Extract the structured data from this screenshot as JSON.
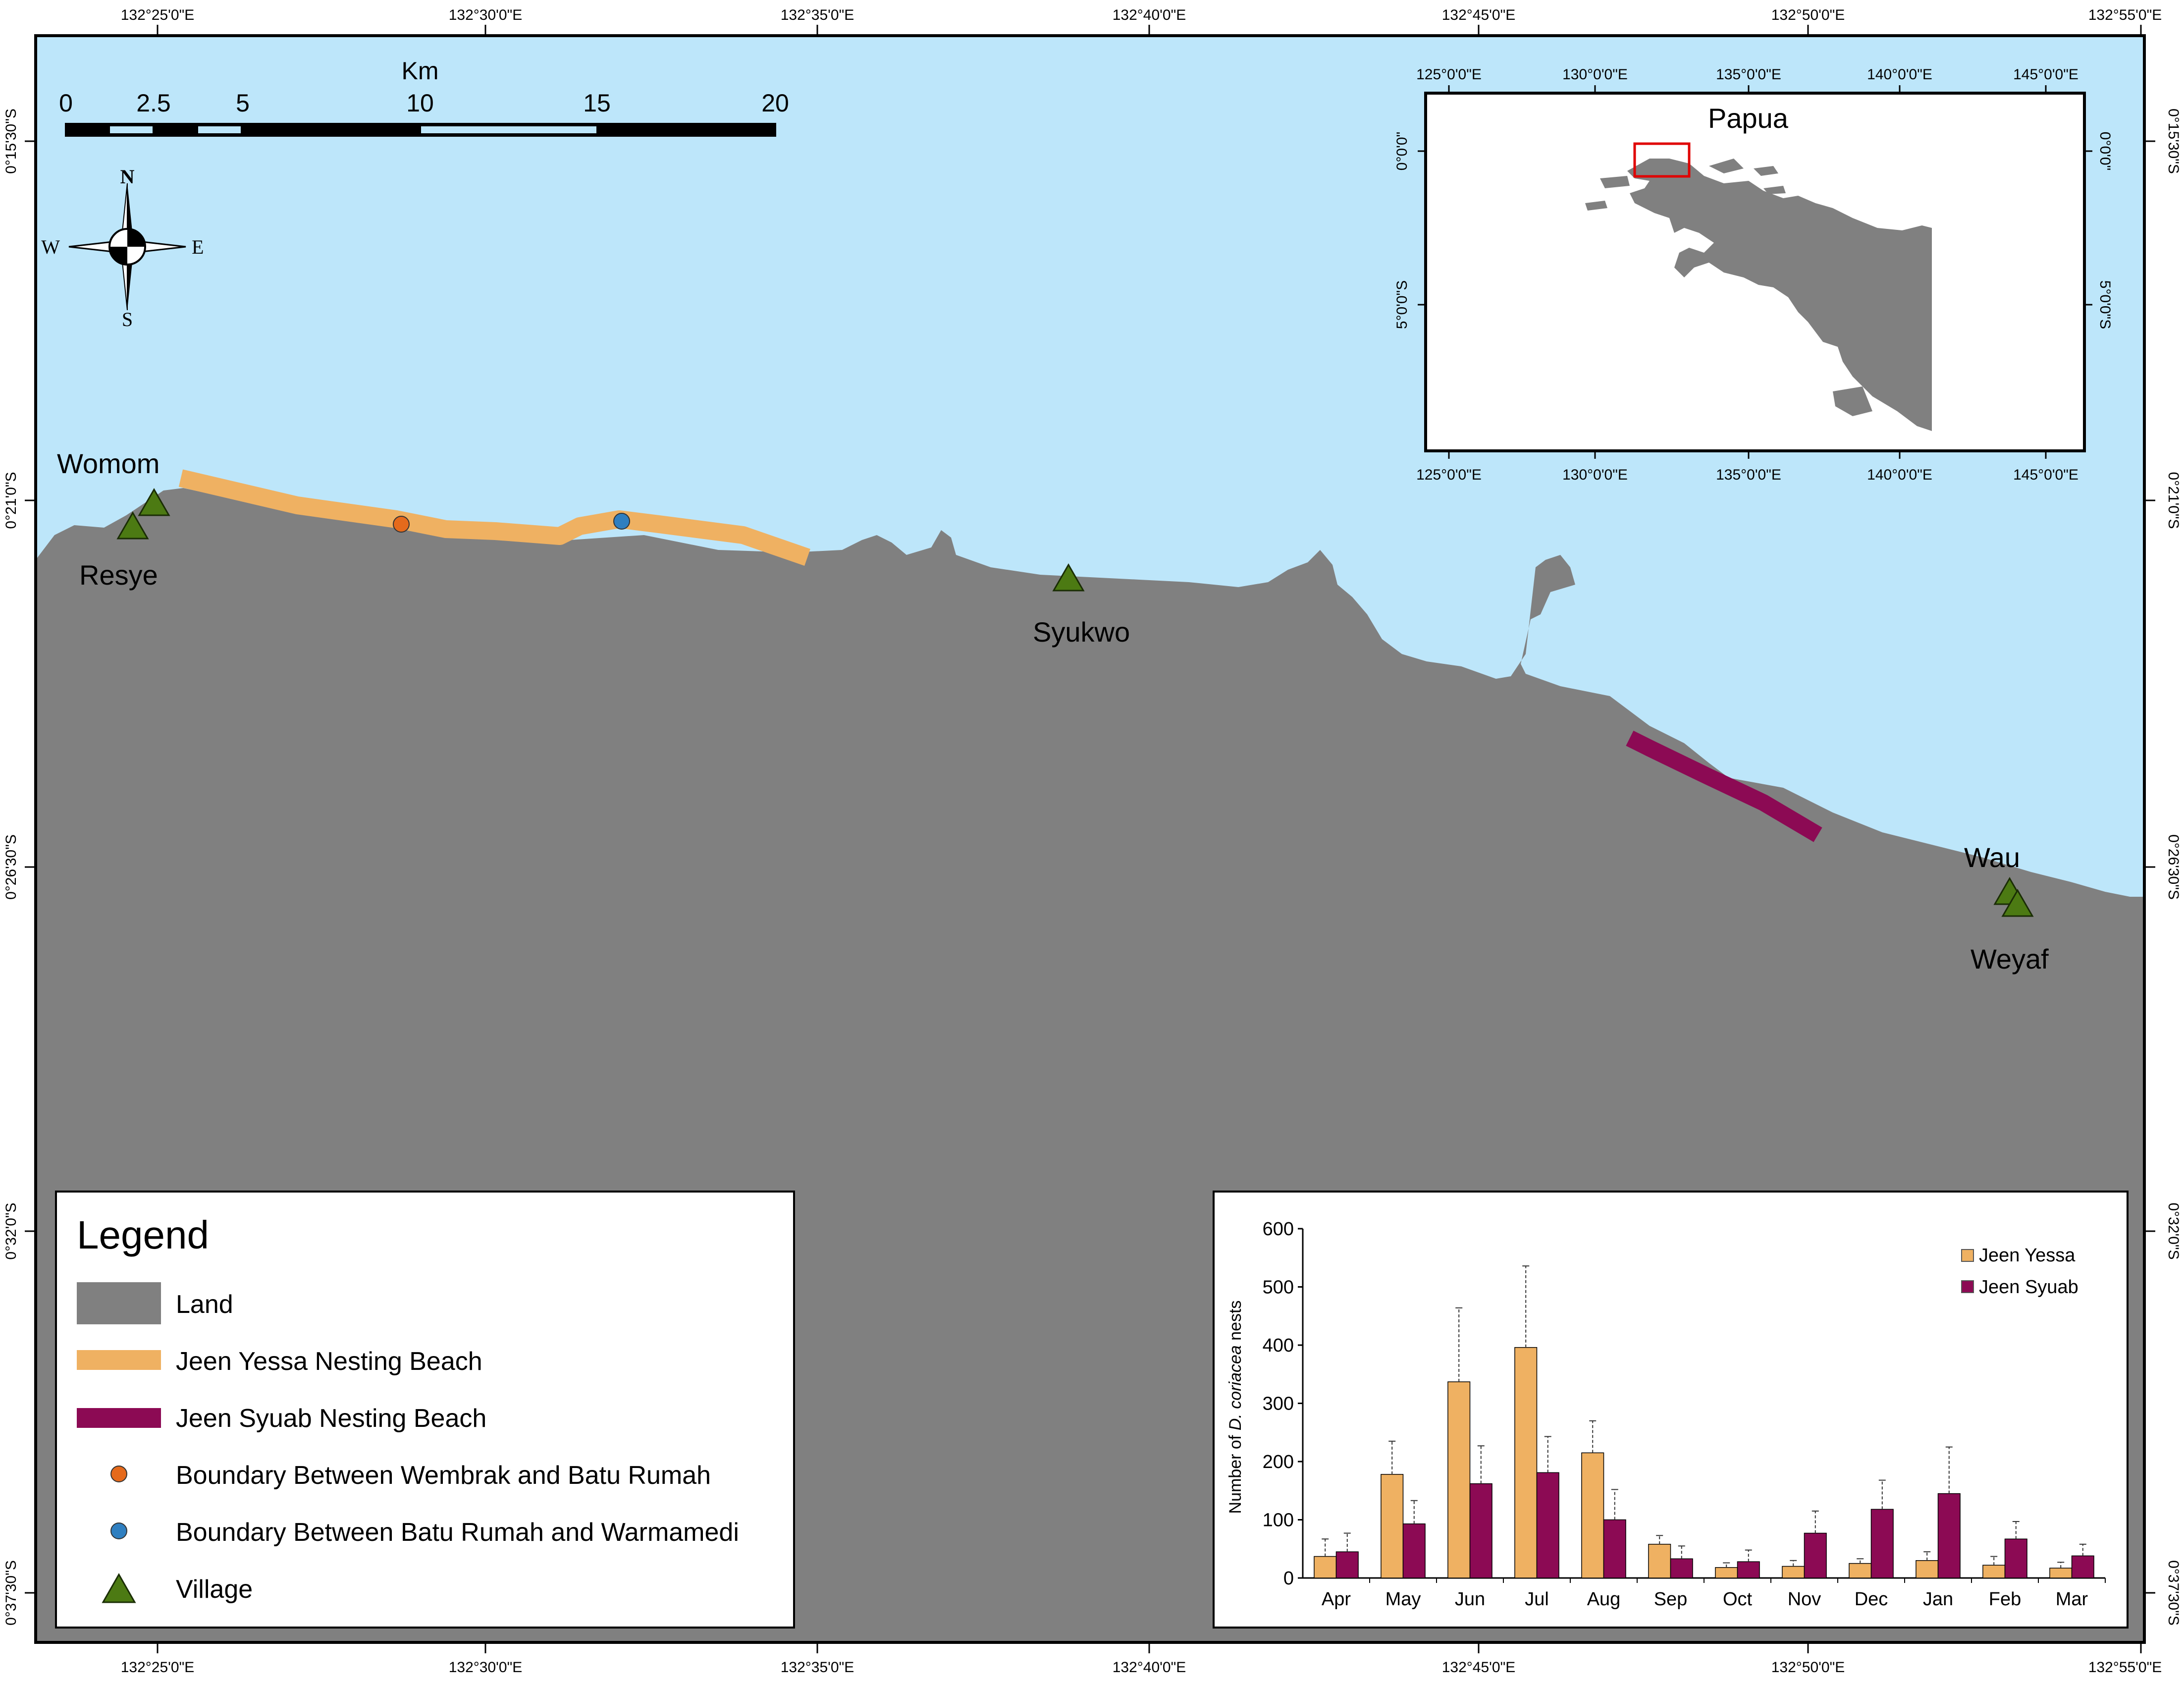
{
  "map": {
    "top_ticks": [
      "132°25'0\"E",
      "132°30'0\"E",
      "132°35'0\"E",
      "132°40'0\"E",
      "132°45'0\"E",
      "132°50'0\"E",
      "132°55'0\"E"
    ],
    "bottom_ticks": [
      "132°25'0\"E",
      "132°30'0\"E",
      "132°35'0\"E",
      "132°40'0\"E",
      "132°45'0\"E",
      "132°50'0\"E",
      "132°55'0\"E"
    ],
    "left_ticks": [
      "0°15'30\"S",
      "0°21'0\"S",
      "0°26'30\"S",
      "0°32'0\"S",
      "0°37'30\"S"
    ],
    "right_ticks": [
      "0°15'30\"S",
      "0°21'0\"S",
      "0°26'30\"S",
      "0°32'0\"S",
      "0°37'30\"S"
    ],
    "colors": {
      "sea": "#bde6fa",
      "land": "#808080",
      "jeen_yessa": "#efb162",
      "jeen_syuab": "#8c0a54",
      "wembrak_boundary": "#e56a1c",
      "warmamedi_boundary": "#2f7fc0",
      "village": "#4c7a13"
    }
  },
  "scale_bar": {
    "unit": "Km",
    "labels": [
      "0",
      "2.5",
      "5",
      "10",
      "15",
      "20"
    ]
  },
  "compass": {
    "n": "N",
    "s": "S",
    "e": "E",
    "w": "W"
  },
  "villages": [
    {
      "name": "Womom"
    },
    {
      "name": "Resye"
    },
    {
      "name": "Syukwo"
    },
    {
      "name": "Wau"
    },
    {
      "name": "Weyaf"
    }
  ],
  "inset": {
    "label": "Papua",
    "top_ticks": [
      "125°0'0\"E",
      "130°0'0\"E",
      "135°0'0\"E",
      "140°0'0\"E",
      "145°0'0\"E"
    ],
    "bottom_ticks": [
      "125°0'0\"E",
      "130°0'0\"E",
      "135°0'0\"E",
      "140°0'0\"E",
      "145°0'0\"E"
    ],
    "left_ticks": [
      "0°0'0\"",
      "5°0'0\"S"
    ],
    "right_ticks": [
      "0°0'0\"",
      "5°0'0\"S"
    ]
  },
  "legend": {
    "title": "Legend",
    "items": [
      {
        "label": "Land",
        "symbol": "land-swatch"
      },
      {
        "label": "Jeen Yessa Nesting Beach",
        "symbol": "yessa-line"
      },
      {
        "label": "Jeen Syuab Nesting Beach",
        "symbol": "syuab-line"
      },
      {
        "label": "Boundary Between Wembrak and Batu Rumah",
        "symbol": "orange-dot"
      },
      {
        "label": "Boundary Between Batu Rumah and Warmamedi",
        "symbol": "blue-dot"
      },
      {
        "label": "Village",
        "symbol": "green-triangle"
      }
    ]
  },
  "chart_data": {
    "type": "bar",
    "categories": [
      "Apr",
      "May",
      "Jun",
      "Jul",
      "Aug",
      "Sep",
      "Oct",
      "Nov",
      "Dec",
      "Jan",
      "Feb",
      "Mar"
    ],
    "ylabel_prefix": "Number of ",
    "ylabel_italic": "D. coriacea",
    "ylabel_suffix": " nests",
    "ylim": [
      0,
      600
    ],
    "yticks": [
      "0",
      "100",
      "200",
      "300",
      "400",
      "500",
      "600"
    ],
    "legend_position": "top-right",
    "series": [
      {
        "name": "Jeen Yessa",
        "color": "#efb162",
        "values": [
          37,
          178,
          337,
          396,
          215,
          58,
          18,
          20,
          25,
          30,
          22,
          17
        ],
        "errors": [
          30,
          57,
          127,
          140,
          55,
          15,
          8,
          10,
          8,
          15,
          15,
          10
        ]
      },
      {
        "name": "Jeen Syuab",
        "color": "#8c0a54",
        "values": [
          45,
          93,
          162,
          181,
          100,
          33,
          28,
          77,
          118,
          145,
          67,
          38
        ],
        "errors": [
          32,
          40,
          65,
          62,
          52,
          22,
          20,
          38,
          50,
          80,
          30,
          20
        ]
      }
    ]
  }
}
